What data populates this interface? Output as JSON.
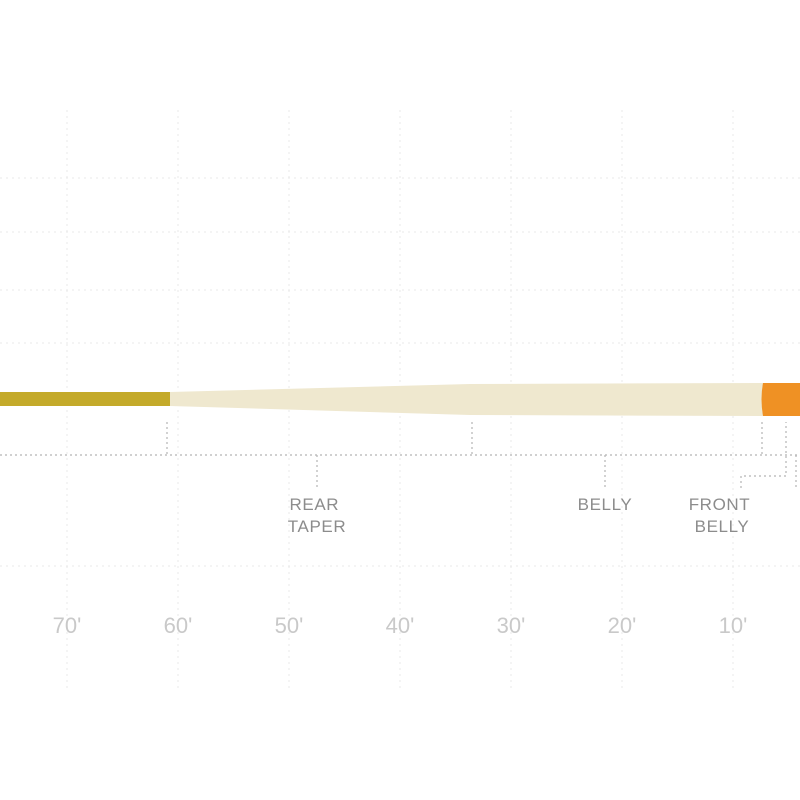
{
  "diagram": {
    "segments": [
      {
        "id": "rear-taper",
        "lines": [
          "REAR",
          "TAPER"
        ]
      },
      {
        "id": "belly",
        "lines": [
          "BELLY"
        ]
      },
      {
        "id": "front-belly",
        "lines": [
          "FRONT",
          "BELLY"
        ]
      }
    ],
    "ticks": [
      "70'",
      "60'",
      "50'",
      "40'",
      "30'",
      "20'",
      "10'"
    ],
    "colors": {
      "running_line": "#c4aa2a",
      "head": "#efe8cf",
      "tip": "#ef9124",
      "guide_line": "#b5b5b5",
      "grid_line": "#e6e6e6",
      "label_text": "#8c8c8c",
      "tick_text": "#c9c9c9"
    }
  }
}
